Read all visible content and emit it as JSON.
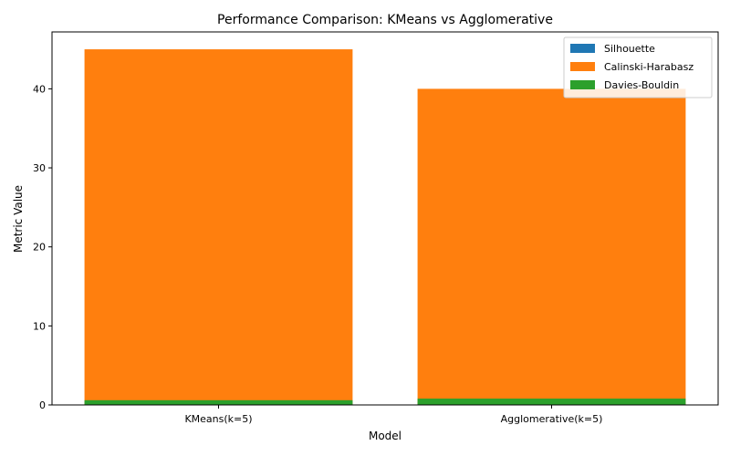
{
  "chart_data": {
    "type": "bar",
    "title": "Performance Comparison: KMeans vs Agglomerative",
    "xlabel": "Model",
    "ylabel": "Metric Value",
    "categories": [
      "KMeans(k=5)",
      "Agglomerative(k=5)"
    ],
    "ylim": [
      0,
      47.2
    ],
    "yticks": [
      0,
      10,
      20,
      30,
      40
    ],
    "grid": false,
    "legend_position": "top-right",
    "series": [
      {
        "name": "Silhouette",
        "values": [
          0.35,
          0.3
        ],
        "color": "#1f77b4"
      },
      {
        "name": "Calinski-Harabasz",
        "values": [
          45.0,
          40.0
        ],
        "color": "#ff7f0e"
      },
      {
        "name": "Davies-Bouldin",
        "values": [
          0.6,
          0.8
        ],
        "color": "#2ca02c"
      }
    ]
  }
}
